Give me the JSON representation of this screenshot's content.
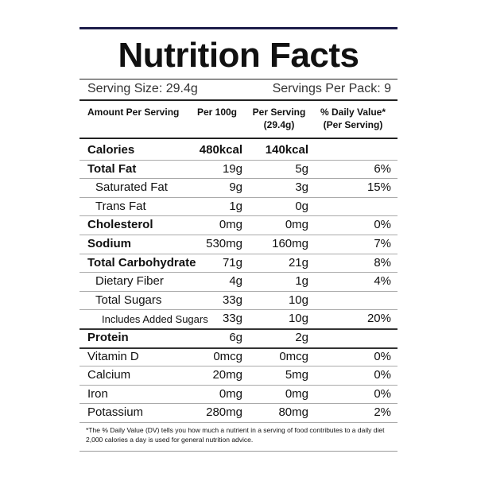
{
  "header": {
    "title": "Nutrition Facts",
    "serving_size": "Serving Size: 29.4g",
    "servings_per_pack": "Servings Per Pack: 9"
  },
  "table": {
    "columns": [
      "Amount Per Serving",
      "Per 100g",
      "Per Serving (29.4g)",
      "% Daily Value* (Per Serving)"
    ],
    "rows": [
      [
        "Calories",
        "480kcal",
        "140kcal",
        null
      ],
      [
        "Total Fat",
        "19g",
        "5g",
        "6%"
      ],
      [
        "Saturated Fat",
        "9g",
        "3g",
        "15%"
      ],
      [
        "Trans Fat",
        "1g",
        "0g",
        null
      ],
      [
        "Cholesterol",
        "0mg",
        "0mg",
        "0%"
      ],
      [
        "Sodium",
        "530mg",
        "160mg",
        "7%"
      ],
      [
        "Total Carbohydrate",
        "71g",
        "21g",
        "8%"
      ],
      [
        "Dietary Fiber",
        "4g",
        "1g",
        "4%"
      ],
      [
        "Total Sugars",
        "33g",
        "10g",
        null
      ],
      [
        "Includes Added Sugars",
        "33g",
        "10g",
        "20%"
      ],
      [
        "Protein",
        "6g",
        "2g",
        null
      ],
      [
        "Vitamin D",
        "0mcg",
        "0mcg",
        "0%"
      ],
      [
        "Calcium",
        "20mg",
        "5mg",
        "0%"
      ],
      [
        "Iron",
        "0mg",
        "0mg",
        "0%"
      ],
      [
        "Potassium",
        "280mg",
        "80mg",
        "2%"
      ]
    ]
  },
  "footnote": "*The % Daily Value (DV) tells you how much a nutrient in a serving of food contributes to a daily diet 2,000 calories a day is used for general nutrition advice."
}
